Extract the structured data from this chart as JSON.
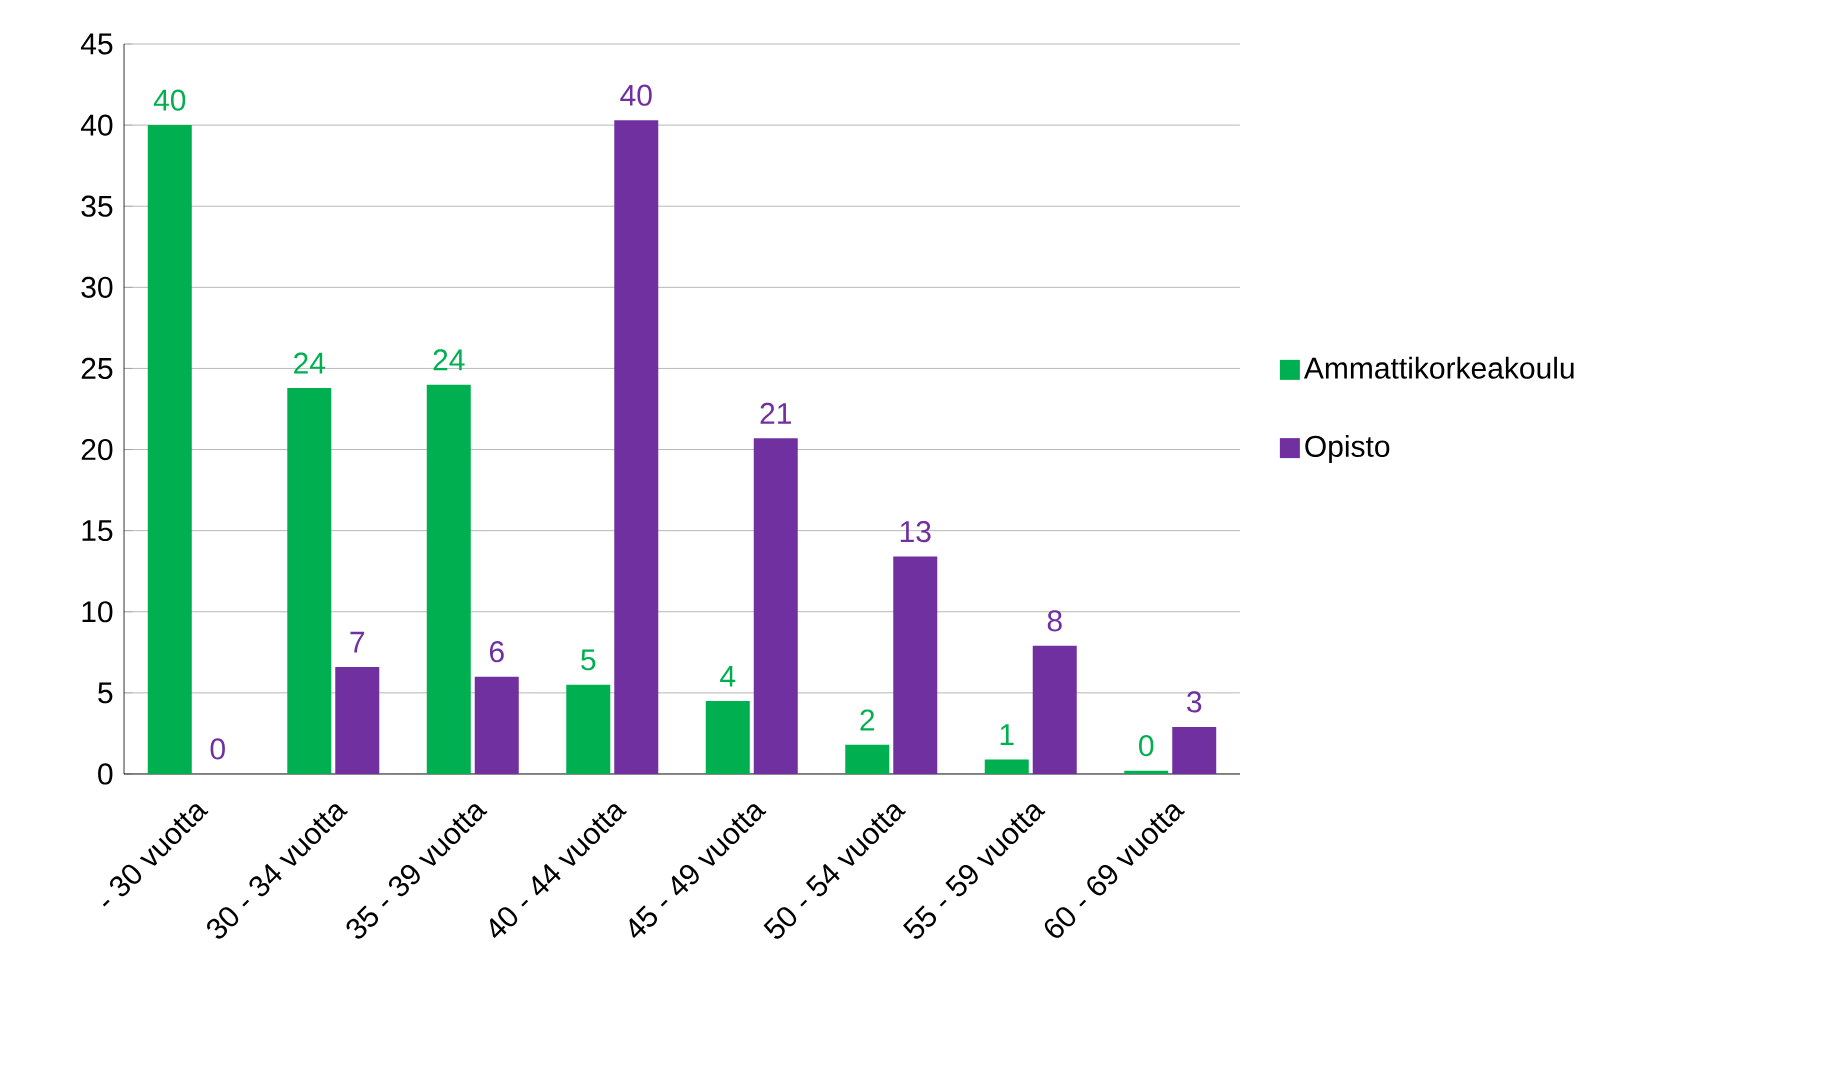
{
  "chart_data": {
    "type": "bar",
    "categories": [
      "- 30 vuotta",
      "30 - 34 vuotta",
      "35 - 39 vuotta",
      "40 - 44 vuotta",
      "45 - 49 vuotta",
      "50 - 54 vuotta",
      "55 - 59 vuotta",
      "60 - 69 vuotta"
    ],
    "series": [
      {
        "name": "Ammattikorkeakoulu",
        "color": "#00b050",
        "values": [
          40,
          23.8,
          24,
          5.5,
          4.5,
          1.8,
          0.9,
          0.2
        ],
        "value_labels": [
          "40",
          "24",
          "24",
          "5",
          "4",
          "2",
          "1",
          "0"
        ]
      },
      {
        "name": "Opisto",
        "color": "#7030a0",
        "values": [
          0,
          6.6,
          6.0,
          40.3,
          20.7,
          13.4,
          7.9,
          2.9
        ],
        "value_labels": [
          "0",
          "7",
          "6",
          "40",
          "21",
          "13",
          "8",
          "3"
        ]
      }
    ],
    "ylim": [
      0,
      45
    ],
    "yticks": [
      0,
      5,
      10,
      15,
      20,
      25,
      30,
      35,
      40,
      45
    ],
    "grid": "y",
    "legend": "right"
  }
}
